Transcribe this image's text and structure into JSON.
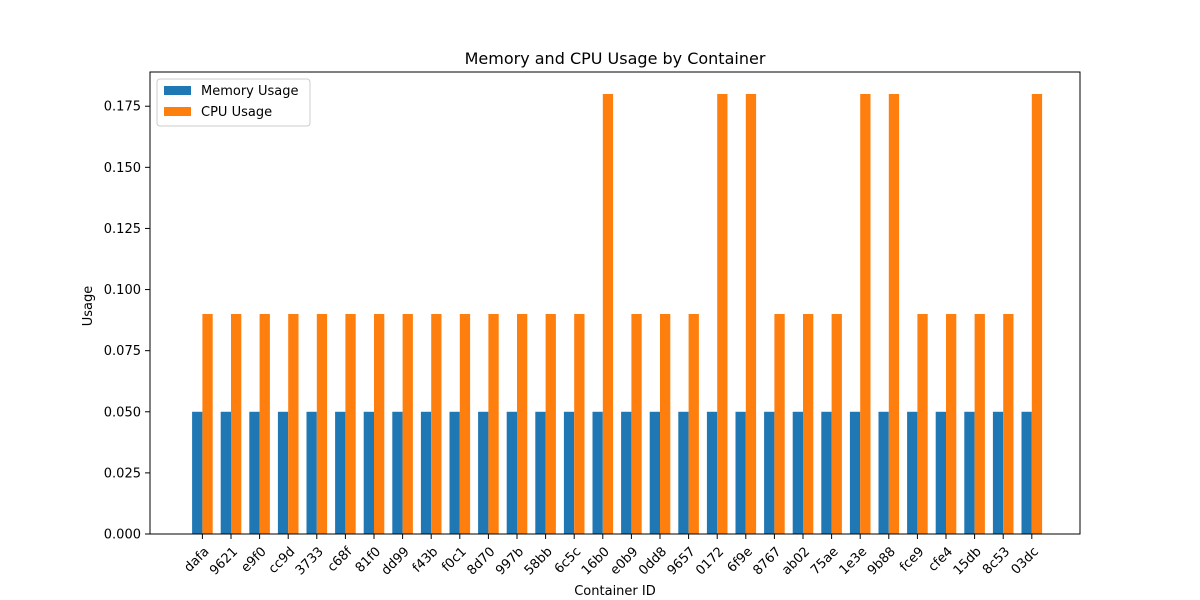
{
  "chart_data": {
    "type": "bar",
    "title": "Memory and CPU Usage by Container",
    "xlabel": "Container ID",
    "ylabel": "Usage",
    "categories": [
      "dafa",
      "9621",
      "e9f0",
      "cc9d",
      "3733",
      "c68f",
      "81f0",
      "dd99",
      "f43b",
      "f0c1",
      "8d70",
      "997b",
      "58bb",
      "6c5c",
      "16b0",
      "e0b9",
      "0dd8",
      "9657",
      "0172",
      "6f9e",
      "8767",
      "ab02",
      "75ae",
      "1e3e",
      "9b88",
      "fce9",
      "cfe4",
      "15db",
      "8c53",
      "03dc"
    ],
    "series": [
      {
        "name": "Memory Usage",
        "color": "#1f77b4",
        "values": [
          0.05,
          0.05,
          0.05,
          0.05,
          0.05,
          0.05,
          0.05,
          0.05,
          0.05,
          0.05,
          0.05,
          0.05,
          0.05,
          0.05,
          0.05,
          0.05,
          0.05,
          0.05,
          0.05,
          0.05,
          0.05,
          0.05,
          0.05,
          0.05,
          0.05,
          0.05,
          0.05,
          0.05,
          0.05,
          0.05
        ]
      },
      {
        "name": "CPU Usage",
        "color": "#ff7f0e",
        "values": [
          0.09,
          0.09,
          0.09,
          0.09,
          0.09,
          0.09,
          0.09,
          0.09,
          0.09,
          0.09,
          0.09,
          0.09,
          0.09,
          0.09,
          0.18,
          0.09,
          0.09,
          0.09,
          0.18,
          0.18,
          0.09,
          0.09,
          0.09,
          0.18,
          0.18,
          0.09,
          0.09,
          0.09,
          0.09,
          0.18
        ]
      }
    ],
    "yticks": [
      "0.000",
      "0.025",
      "0.050",
      "0.075",
      "0.100",
      "0.125",
      "0.150",
      "0.175"
    ],
    "ylim": [
      0,
      0.189
    ],
    "legend_position": "top-left",
    "grid": false
  }
}
